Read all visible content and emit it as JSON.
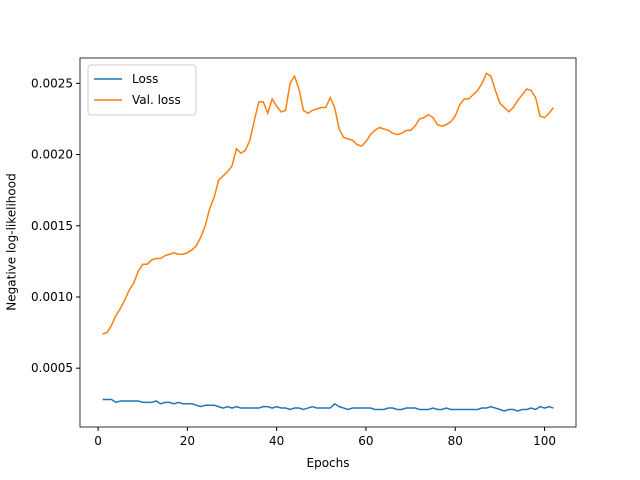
{
  "chart_data": {
    "type": "line",
    "xlabel": "Epochs",
    "ylabel": "Negative log-likelihood",
    "x": [
      1,
      2,
      3,
      4,
      5,
      6,
      7,
      8,
      9,
      10,
      11,
      12,
      13,
      14,
      15,
      16,
      17,
      18,
      19,
      20,
      21,
      22,
      23,
      24,
      25,
      26,
      27,
      28,
      29,
      30,
      31,
      32,
      33,
      34,
      35,
      36,
      37,
      38,
      39,
      40,
      41,
      42,
      43,
      44,
      45,
      46,
      47,
      48,
      49,
      50,
      51,
      52,
      53,
      54,
      55,
      56,
      57,
      58,
      59,
      60,
      61,
      62,
      63,
      64,
      65,
      66,
      67,
      68,
      69,
      70,
      71,
      72,
      73,
      74,
      75,
      76,
      77,
      78,
      79,
      80,
      81,
      82,
      83,
      84,
      85,
      86,
      87,
      88,
      89,
      90,
      91,
      92,
      93,
      94,
      95,
      96,
      97,
      98,
      99,
      100,
      101,
      102
    ],
    "series": [
      {
        "name": "Loss",
        "color": "#1f77b4",
        "values": [
          0.00028,
          0.00028,
          0.00028,
          0.00026,
          0.00027,
          0.00027,
          0.00027,
          0.00027,
          0.00027,
          0.00026,
          0.00026,
          0.00026,
          0.00027,
          0.00025,
          0.00026,
          0.00026,
          0.00025,
          0.00026,
          0.00025,
          0.00025,
          0.00025,
          0.00024,
          0.00023,
          0.00024,
          0.00024,
          0.00024,
          0.00023,
          0.00022,
          0.00023,
          0.00022,
          0.00023,
          0.00022,
          0.00022,
          0.00022,
          0.00022,
          0.00022,
          0.00023,
          0.00023,
          0.00022,
          0.00023,
          0.00022,
          0.00022,
          0.00021,
          0.00022,
          0.00022,
          0.00021,
          0.00022,
          0.00023,
          0.00022,
          0.00022,
          0.00022,
          0.00022,
          0.00025,
          0.00023,
          0.00022,
          0.00021,
          0.00022,
          0.00022,
          0.00022,
          0.00022,
          0.00022,
          0.00021,
          0.00021,
          0.00021,
          0.00022,
          0.00022,
          0.00021,
          0.00021,
          0.00022,
          0.00022,
          0.00022,
          0.00021,
          0.00021,
          0.00021,
          0.00022,
          0.00021,
          0.00021,
          0.00022,
          0.00021,
          0.00021,
          0.00021,
          0.00021,
          0.00021,
          0.00021,
          0.00021,
          0.00022,
          0.00022,
          0.00023,
          0.00022,
          0.00021,
          0.0002,
          0.00021,
          0.00021,
          0.0002,
          0.00021,
          0.00021,
          0.00022,
          0.00021,
          0.00023,
          0.00022,
          0.00023,
          0.00022
        ]
      },
      {
        "name": "Val. loss",
        "color": "#ff7f0e",
        "values": [
          0.00074,
          0.00075,
          0.0008,
          0.00087,
          0.00092,
          0.00098,
          0.00105,
          0.0011,
          0.00118,
          0.00123,
          0.00123,
          0.00126,
          0.00127,
          0.00127,
          0.00129,
          0.0013,
          0.00131,
          0.0013,
          0.0013,
          0.00131,
          0.00133,
          0.00136,
          0.00142,
          0.0015,
          0.00162,
          0.0017,
          0.00182,
          0.00185,
          0.00188,
          0.00192,
          0.00204,
          0.00201,
          0.00203,
          0.0021,
          0.00224,
          0.00237,
          0.00237,
          0.00229,
          0.00239,
          0.00234,
          0.0023,
          0.00231,
          0.0025,
          0.00255,
          0.00246,
          0.00231,
          0.00229,
          0.00231,
          0.00232,
          0.00233,
          0.00233,
          0.0024,
          0.00233,
          0.00218,
          0.00212,
          0.00211,
          0.0021,
          0.00207,
          0.00206,
          0.00209,
          0.00214,
          0.00217,
          0.00219,
          0.00218,
          0.00217,
          0.00215,
          0.00214,
          0.00215,
          0.00217,
          0.00217,
          0.0022,
          0.00225,
          0.00226,
          0.00228,
          0.00226,
          0.00221,
          0.0022,
          0.00221,
          0.00223,
          0.00227,
          0.00235,
          0.00239,
          0.00239,
          0.00242,
          0.00245,
          0.0025,
          0.00257,
          0.00255,
          0.00245,
          0.00236,
          0.00233,
          0.0023,
          0.00233,
          0.00238,
          0.00242,
          0.00246,
          0.00245,
          0.0024,
          0.00227,
          0.00226,
          0.00229,
          0.00233
        ]
      }
    ],
    "xlim": [
      -4.05,
      107.05
    ],
    "xticks": [
      0,
      20,
      40,
      60,
      80,
      100
    ],
    "ylim": [
      8.7e-05,
      0.002678
    ],
    "yticks": [
      0.0005,
      {
        "value": 0.001,
        "label": "0.0010"
      },
      0.0015,
      {
        "value": 0.002,
        "label": "0.0020"
      },
      0.0025
    ],
    "legend": "upper left",
    "grid": false
  }
}
